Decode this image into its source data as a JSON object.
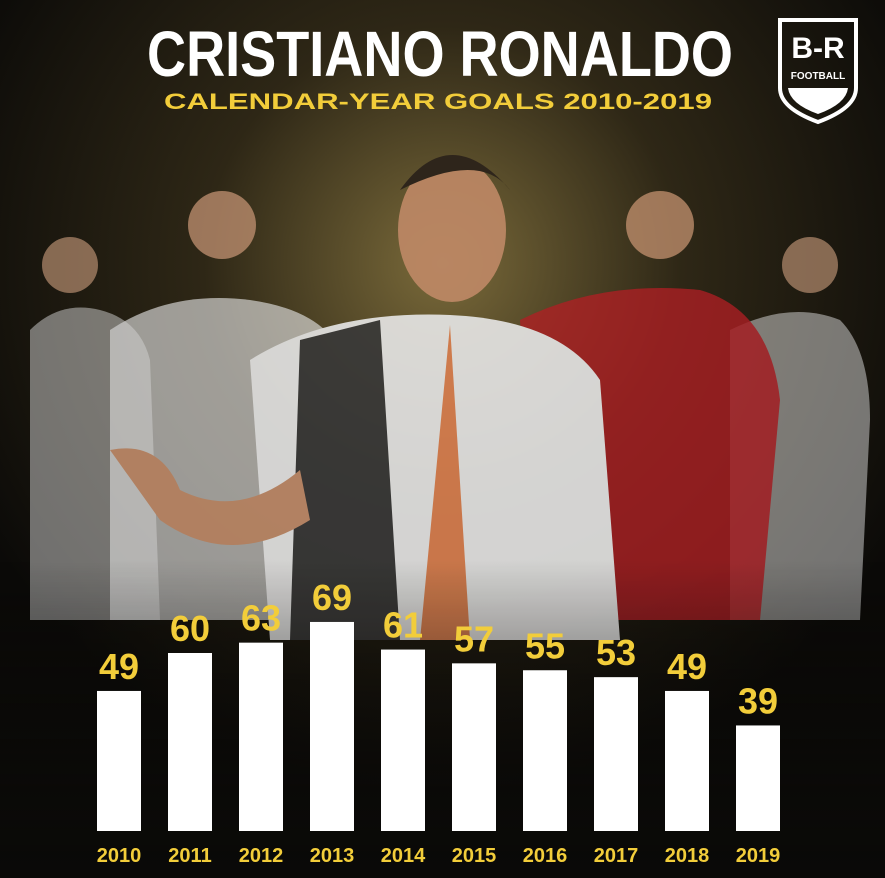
{
  "chart_data": {
    "type": "bar",
    "title": "CRISTIANO RONALDO",
    "subtitle": "CALENDAR-YEAR GOALS 2010-2019",
    "categories": [
      "2010",
      "2011",
      "2012",
      "2013",
      "2014",
      "2015",
      "2016",
      "2017",
      "2018",
      "2019"
    ],
    "values": [
      49,
      60,
      63,
      69,
      61,
      57,
      55,
      53,
      49,
      39
    ],
    "color": "#ffffff",
    "label_color": "#f2cd3a"
  },
  "logo": {
    "mark": "B-R",
    "sub": "FOOTBALL"
  }
}
